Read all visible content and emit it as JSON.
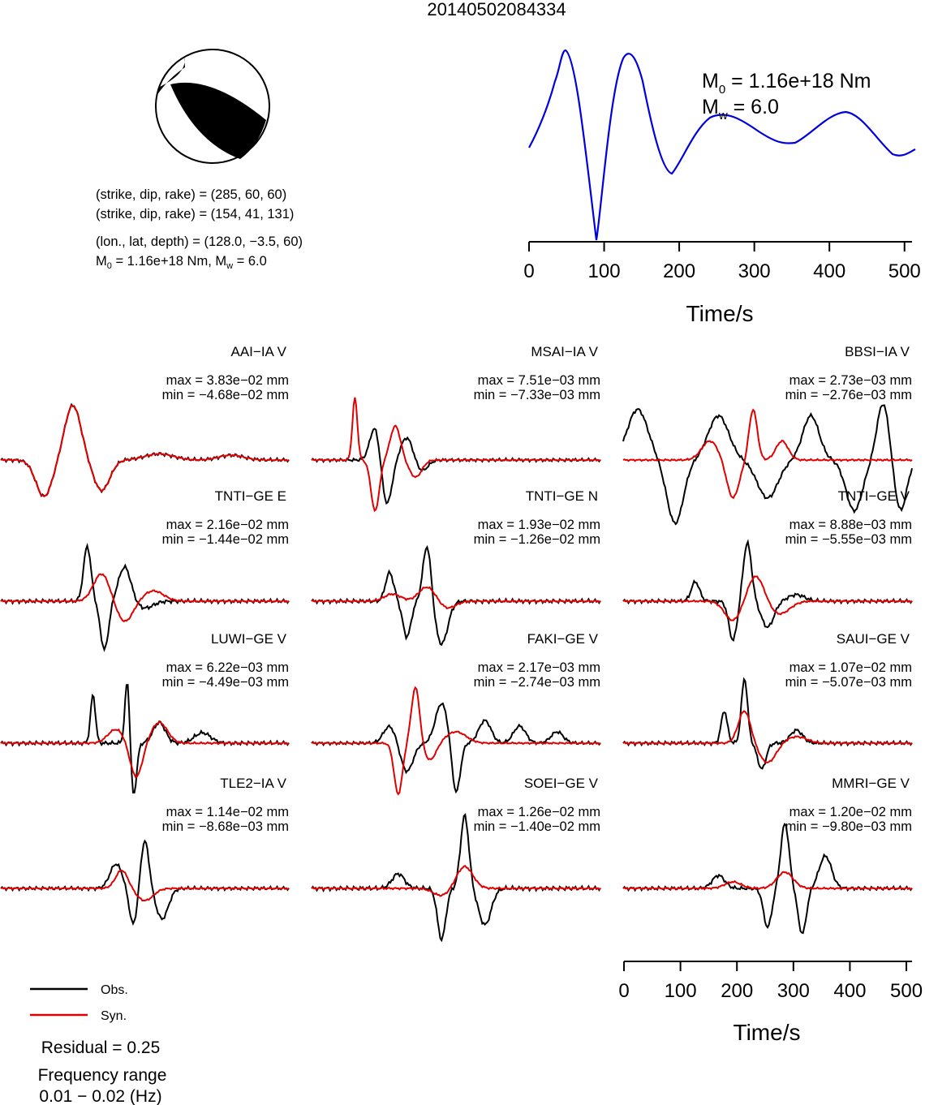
{
  "title": "20140502084334",
  "mechanism": {
    "line1": "(strike, dip, rake) = (285, 60, 60)",
    "line2": "(strike, dip, rake) = (154, 41, 131)",
    "line3": "(lon., lat, depth) = (128.0, −3.5, 60)",
    "m0_text": "M",
    "m0_sub": "0",
    "m0_value": " = 1.16e+18 Nm, M",
    "mw_sub": "w",
    "mw_value": " = 6.0"
  },
  "stf": {
    "m0_prefix": "M",
    "m0_sub": "0",
    "m0_rest": " = 1.16e+18 Nm",
    "mw_prefix": "M",
    "mw_sub": "w",
    "mw_rest": " = 6.0",
    "xlabel": "Time/s",
    "ticks": [
      "0",
      "100",
      "200",
      "300",
      "400",
      "500"
    ],
    "color": "#0000e0"
  },
  "waveform_axis": {
    "xlabel": "Time/s",
    "ticks": [
      "0",
      "100",
      "200",
      "300",
      "400",
      "500"
    ]
  },
  "legend": {
    "obs_label": "Obs.",
    "syn_label": "Syn.",
    "obs_color": "#000000",
    "syn_color": "#e00000"
  },
  "residual": "Residual = 0.25",
  "freq_label": "Frequency range",
  "freq_value": "0.01 − 0.02 (Hz)",
  "chart_data": {
    "type": "line",
    "title": "20140502084334",
    "xlabel": "Time/s",
    "xlim": [
      0,
      510
    ],
    "stations": [
      {
        "name": "AAI−IA V",
        "max": "max = 3.83e−02 mm",
        "min": "min = −4.68e−02 mm"
      },
      {
        "name": "MSAI−IA V",
        "max": "max = 7.51e−03 mm",
        "min": "min = −7.33e−03 mm"
      },
      {
        "name": "BBSI−IA V",
        "max": "max = 2.73e−03 mm",
        "min": "min = −2.76e−03 mm"
      },
      {
        "name": "TNTI−GE E",
        "max": "max = 2.16e−02 mm",
        "min": "min = −1.44e−02 mm"
      },
      {
        "name": "TNTI−GE N",
        "max": "max = 1.93e−02 mm",
        "min": "min = −1.26e−02 mm"
      },
      {
        "name": "TNTI−GE V",
        "max": "max = 8.88e−03 mm",
        "min": "min = −5.55e−03 mm"
      },
      {
        "name": "LUWI−GE V",
        "max": "max = 6.22e−03 mm",
        "min": "min = −4.49e−03 mm"
      },
      {
        "name": "FAKI−GE V",
        "max": "max = 2.17e−03 mm",
        "min": "min = −2.74e−03 mm"
      },
      {
        "name": "SAUI−GE V",
        "max": "max = 1.07e−02 mm",
        "min": "min = −5.07e−03 mm"
      },
      {
        "name": "TLE2−IA V",
        "max": "max = 1.14e−02 mm",
        "min": "min = −8.68e−03 mm"
      },
      {
        "name": "SOEI−GE V",
        "max": "max = 1.26e−02 mm",
        "min": "min = −1.40e−02 mm"
      },
      {
        "name": "MMRI−GE V",
        "max": "max = 1.20e−02 mm",
        "min": "min = −9.80e−03 mm"
      }
    ]
  }
}
